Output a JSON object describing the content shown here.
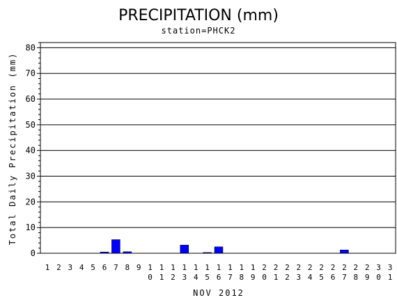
{
  "chart_data": {
    "type": "bar",
    "title": "PRECIPITATION (mm)",
    "subtitle": "station=PHCK2",
    "xlabel": "NOV 2012",
    "ylabel": "Total Daily Precipitation (mm)",
    "ylim": [
      0,
      82
    ],
    "yticks": [
      0,
      10,
      20,
      30,
      40,
      50,
      60,
      70,
      80
    ],
    "grid": true,
    "bar_color": "#0000ff",
    "categories": [
      "1",
      "2",
      "3",
      "4",
      "5",
      "6",
      "7",
      "8",
      "9",
      "10",
      "11",
      "12",
      "13",
      "14",
      "15",
      "16",
      "17",
      "18",
      "19",
      "20",
      "21",
      "22",
      "23",
      "24",
      "25",
      "26",
      "27",
      "28",
      "29",
      "30",
      "31"
    ],
    "values": [
      0,
      0,
      0,
      0,
      0,
      0.5,
      5.3,
      0.6,
      0,
      0,
      0,
      0,
      3.2,
      0,
      0.3,
      2.5,
      0,
      0,
      0,
      0,
      0,
      0,
      0,
      0,
      0,
      0,
      1.3,
      0,
      0,
      0,
      0
    ]
  }
}
